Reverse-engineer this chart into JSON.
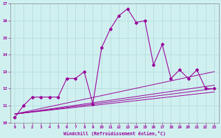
{
  "xlabel": "Windchill (Refroidissement éolien,°C)",
  "xlim": [
    -0.5,
    23.5
  ],
  "ylim": [
    10,
    17
  ],
  "xticks": [
    0,
    1,
    2,
    3,
    4,
    5,
    6,
    7,
    8,
    9,
    10,
    11,
    12,
    13,
    14,
    15,
    16,
    17,
    18,
    19,
    20,
    21,
    22,
    23
  ],
  "yticks": [
    10,
    11,
    12,
    13,
    14,
    15,
    16,
    17
  ],
  "background_color": "#d0f0f0",
  "line_color": "#990099",
  "grid_color": "#b0d8d8",
  "main_line": {
    "x": [
      0,
      1,
      2,
      3,
      4,
      5,
      6,
      7,
      8,
      9,
      10,
      11,
      12,
      13,
      14,
      15,
      16,
      17,
      18,
      19,
      20,
      21,
      22,
      23
    ],
    "y": [
      10.3,
      11.0,
      11.5,
      11.5,
      11.5,
      11.5,
      12.6,
      12.6,
      13.0,
      11.1,
      14.4,
      15.5,
      16.3,
      16.7,
      15.9,
      16.0,
      13.4,
      14.6,
      12.6,
      13.1,
      12.6,
      13.1,
      12.0,
      12.0
    ]
  },
  "trend_lines": [
    {
      "x": [
        0,
        23
      ],
      "y": [
        10.5,
        12.2
      ]
    },
    {
      "x": [
        0,
        23
      ],
      "y": [
        10.5,
        13.0
      ]
    },
    {
      "x": [
        0,
        23
      ],
      "y": [
        10.5,
        12.0
      ]
    },
    {
      "x": [
        0,
        23
      ],
      "y": [
        10.5,
        11.8
      ]
    }
  ]
}
